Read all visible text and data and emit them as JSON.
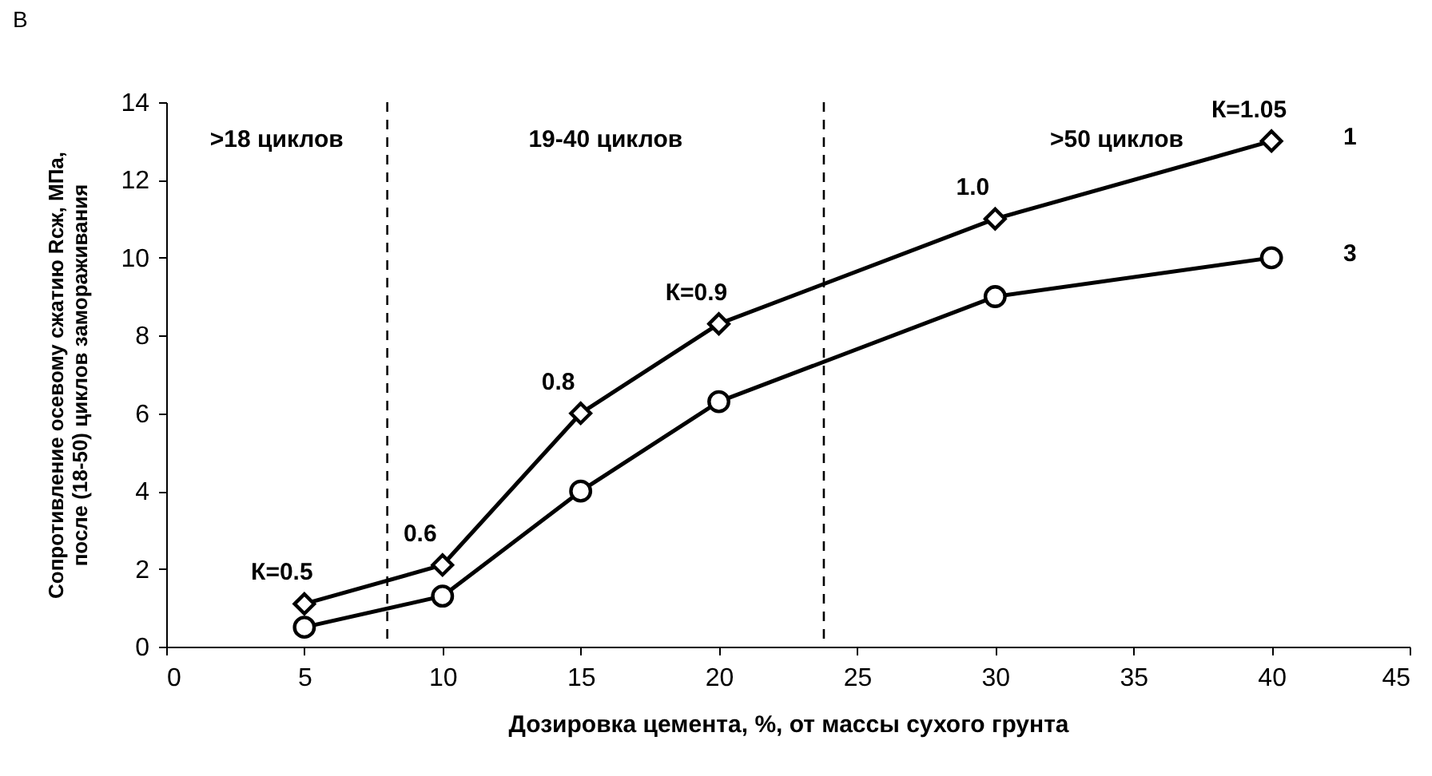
{
  "chart_data": {
    "type": "line",
    "xlabel": "Дозировка цемента, %, от массы сухого грунта",
    "ylabel": "Сопротивление осевому сжатию Rсж, МПа,\nпосле (18-50) циклов замораживания",
    "xlim": [
      0,
      45
    ],
    "xticks": [
      0,
      5,
      10,
      15,
      20,
      25,
      30,
      35,
      40,
      45
    ],
    "ylim": [
      0,
      14
    ],
    "yticks": [
      0,
      2,
      4,
      6,
      8,
      10,
      12,
      14
    ],
    "grid": false,
    "legend": false,
    "x": [
      5,
      10,
      15,
      20,
      30,
      40
    ],
    "series": [
      {
        "name": "1",
        "color": "#000000",
        "marker": "diamond",
        "values": [
          1.1,
          2.1,
          6.0,
          8.3,
          11.0,
          13.0
        ]
      },
      {
        "name": "3",
        "color": "#000000",
        "marker": "circle",
        "values": [
          0.5,
          1.3,
          4.0,
          6.3,
          9.0,
          10.0
        ]
      }
    ],
    "ref_lines": [
      {
        "axis": "x",
        "value": 8,
        "line_style": "dashed",
        "color": "#000000"
      },
      {
        "axis": "x",
        "value": 23.8,
        "line_style": "dashed",
        "color": "#000000"
      }
    ],
    "annotations": [
      "В",
      ">18 циклов",
      "19-40 циклов",
      ">50 циклов",
      {
        "text": "К=0.5",
        "x": 5,
        "y": 1.1
      },
      {
        "text": "0.6",
        "x": 10,
        "y": 2.1
      },
      {
        "text": "0.8",
        "x": 15,
        "y": 6.0
      },
      {
        "text": "К=0.9",
        "x": 20,
        "y": 8.3
      },
      {
        "text": "1.0",
        "x": 30,
        "y": 11.0
      },
      {
        "text": "К=1.05",
        "x": 40,
        "y": 13.0
      }
    ]
  }
}
